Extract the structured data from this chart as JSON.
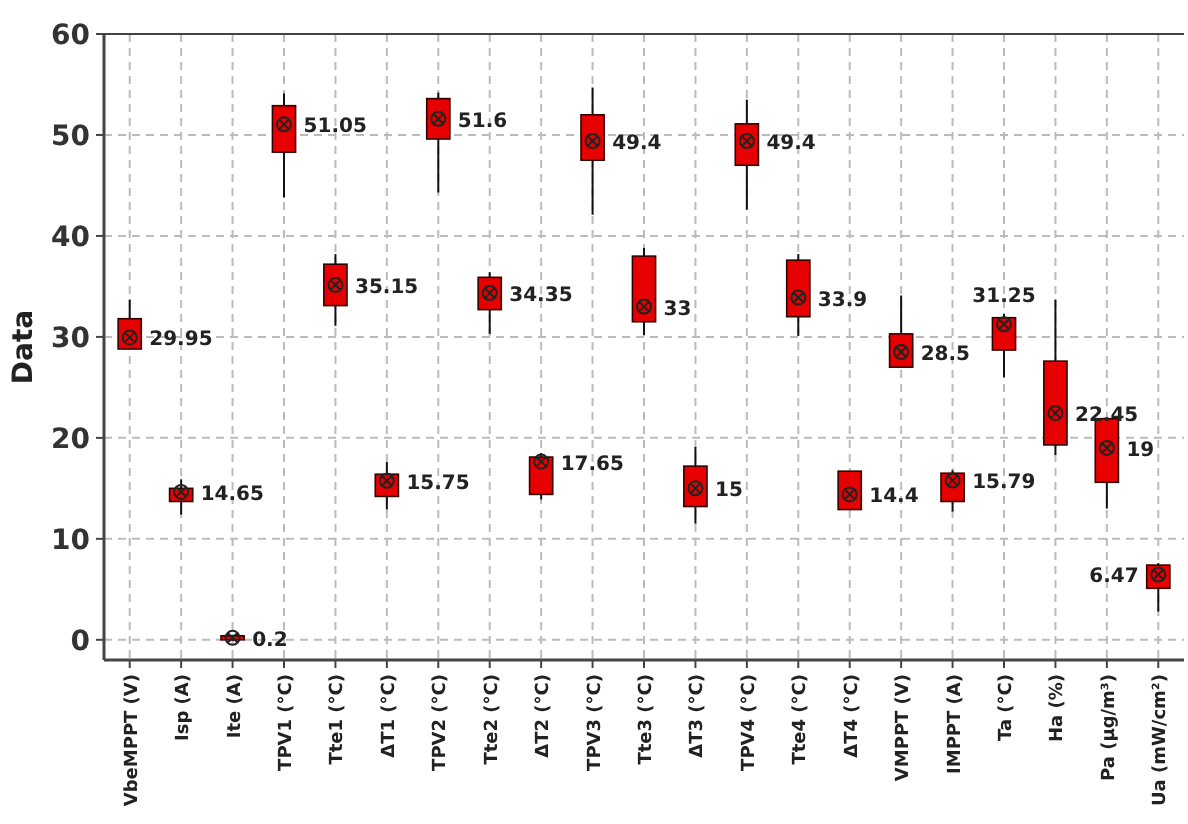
{
  "chart_data": {
    "type": "box",
    "ylabel": "Data",
    "color": "#e60000",
    "grid": true,
    "ylim": [
      -2,
      60
    ],
    "yticks": [
      0,
      10,
      20,
      30,
      40,
      50,
      60
    ],
    "categories": [
      "VbeMPPT (V)",
      "Isp (A)",
      "Ite (A)",
      "TPV1 (°C)",
      "Tte1 (°C)",
      "ΔT1 (°C)",
      "TPV2 (°C)",
      "Tte2 (°C)",
      "ΔT2 (°C)",
      "TPV3 (°C)",
      "Tte3 (°C)",
      "ΔT3 (°C)",
      "TPV4 (°C)",
      "Tte4 (°C)",
      "ΔT4 (°C)",
      "VMPPT (V)",
      "IMPPT (A)",
      "Ta (°C)",
      "Ha (%)",
      "Pa (μg/m³)",
      "Ua (mW/cm²)"
    ],
    "boxes": [
      {
        "low": 28.8,
        "q1": 28.8,
        "median": 29.95,
        "q3": 31.8,
        "high": 33.7
      },
      {
        "low": 12.4,
        "q1": 13.7,
        "median": 14.65,
        "q3": 15,
        "high": 15.9
      },
      {
        "low": -0.1,
        "q1": 0,
        "median": 0.2,
        "q3": 0.4,
        "high": 0.5
      },
      {
        "low": 43.8,
        "q1": 48.3,
        "median": 51.05,
        "q3": 52.9,
        "high": 54.1
      },
      {
        "low": 31.1,
        "q1": 33.1,
        "median": 35.15,
        "q3": 37.2,
        "high": 38.2
      },
      {
        "low": 12.9,
        "q1": 14.2,
        "median": 15.75,
        "q3": 16.4,
        "high": 17.6
      },
      {
        "low": 44.3,
        "q1": 49.6,
        "median": 51.6,
        "q3": 53.6,
        "high": 54.2
      },
      {
        "low": 30.3,
        "q1": 32.7,
        "median": 34.35,
        "q3": 35.9,
        "high": 36.4
      },
      {
        "low": 13.9,
        "q1": 14.4,
        "median": 17.65,
        "q3": 18.1,
        "high": 18.5
      },
      {
        "low": 42.1,
        "q1": 47.5,
        "median": 49.4,
        "q3": 52,
        "high": 54.7
      },
      {
        "low": 30.2,
        "q1": 31.5,
        "median": 33,
        "q3": 38,
        "high": 38.8
      },
      {
        "low": 11.5,
        "q1": 13.2,
        "median": 15,
        "q3": 17.2,
        "high": 19.1
      },
      {
        "low": 42.6,
        "q1": 47,
        "median": 49.4,
        "q3": 51.1,
        "high": 53.5
      },
      {
        "low": 30.1,
        "q1": 32,
        "median": 33.9,
        "q3": 37.6,
        "high": 38.2
      },
      {
        "low": 12.9,
        "q1": 12.9,
        "median": 14.4,
        "q3": 16.7,
        "high": 16.7
      },
      {
        "low": 27,
        "q1": 27,
        "median": 28.5,
        "q3": 30.3,
        "high": 34.1
      },
      {
        "low": 12.7,
        "q1": 13.7,
        "median": 15.79,
        "q3": 16.5,
        "high": 16.8
      },
      {
        "low": 26,
        "q1": 28.7,
        "median": 31.25,
        "q3": 31.9,
        "high": 32.3
      },
      {
        "low": 18.3,
        "q1": 19.3,
        "median": 22.45,
        "q3": 27.6,
        "high": 33.7
      },
      {
        "low": 13,
        "q1": 15.6,
        "median": 19,
        "q3": 21.9,
        "high": 21.9
      },
      {
        "low": 2.8,
        "q1": 5.1,
        "median": 6.47,
        "q3": 7.4,
        "high": 7.6
      }
    ],
    "annotations": [
      {
        "text": "29.95",
        "x": "VbeMPPT (V)",
        "y": 29.95
      },
      {
        "text": "14.65",
        "x": "Isp (A)",
        "y": 14.65
      },
      {
        "text": "0.2",
        "x": "Ite (A)",
        "y": 0.2
      },
      {
        "text": "51.05",
        "x": "TPV1 (°C)",
        "y": 51.05
      },
      {
        "text": "35.15",
        "x": "Tte1 (°C)",
        "y": 35.15
      },
      {
        "text": "15.75",
        "x": "ΔT1 (°C)",
        "y": 15.75
      },
      {
        "text": "51.6",
        "x": "TPV2 (°C)",
        "y": 51.6
      },
      {
        "text": "34.35",
        "x": "Tte2 (°C)",
        "y": 34.35
      },
      {
        "text": "17.65",
        "x": "ΔT2 (°C)",
        "y": 17.65
      },
      {
        "text": "49.4",
        "x": "TPV3 (°C)",
        "y": 49.4
      },
      {
        "text": "33",
        "x": "Tte3 (°C)",
        "y": 33
      },
      {
        "text": "15",
        "x": "ΔT3 (°C)",
        "y": 15
      },
      {
        "text": "49.4",
        "x": "TPV4 (°C)",
        "y": 49.4
      },
      {
        "text": "33.9",
        "x": "Tte4 (°C)",
        "y": 33.9
      },
      {
        "text": "14.4",
        "x": "ΔT4 (°C)",
        "y": 14.4
      },
      {
        "text": "28.5",
        "x": "VMPPT (V)",
        "y": 28.5
      },
      {
        "text": "15.79",
        "x": "IMPPT (A)",
        "y": 15.79
      },
      {
        "text": "31.25",
        "x": "Ta (°C)",
        "y": 31.25
      },
      {
        "text": "22.45",
        "x": "Ha (%)",
        "y": 22.45
      },
      {
        "text": "19",
        "x": "Pa (μg/m³)",
        "y": 19
      },
      {
        "text": "6.47",
        "x": "Ua (mW/cm²)",
        "y": 6.47
      }
    ]
  }
}
